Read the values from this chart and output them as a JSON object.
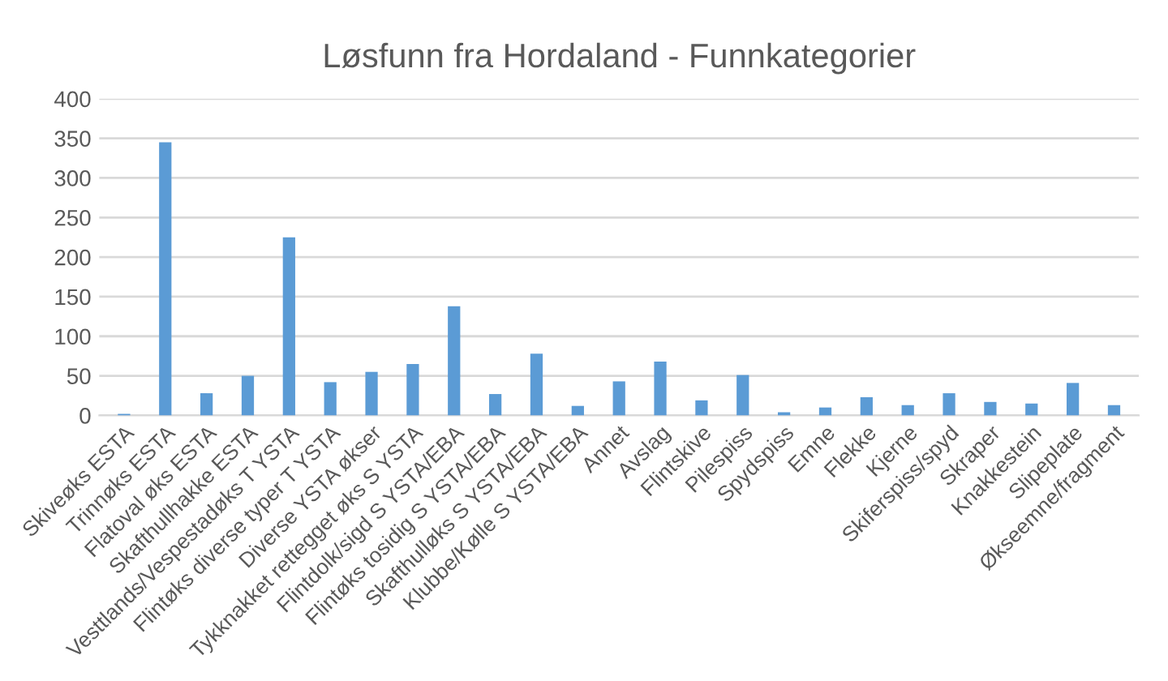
{
  "chart_data": {
    "type": "bar",
    "title": "Løsfunn fra Hordaland - Funnkategorier",
    "categories": [
      "Skiveøks ESTA",
      "Trinnøks ESTA",
      "Flatoval øks ESTA",
      "Skafthullhakke ESTA",
      "Vesttlands/Vespestadøks T YSTA",
      "Flintøks diverse typer T YSTA",
      "Diverse YSTA økser",
      "Tykknakket rettegget øks S YSTA",
      "Flintdolk/sigd S YSTA/EBA",
      "Flintøks tosidig S YSTA/EBA",
      "Skafthulløks S YSTA/EBA",
      "Klubbe/Kølle S YSTA/EBA",
      "Annet",
      "Avslag",
      "Flintskive",
      "Pilespiss",
      "Spydspiss",
      "Emne",
      "Flekke",
      "Kjerne",
      "Skiferspiss/spyd",
      "Skraper",
      "Knakkestein",
      "Slipeplate",
      "Økseemne/fragment"
    ],
    "values": [
      2,
      345,
      28,
      50,
      225,
      42,
      55,
      65,
      138,
      27,
      78,
      12,
      43,
      68,
      19,
      51,
      4,
      10,
      23,
      13,
      28,
      17,
      15,
      41,
      13
    ],
    "color": "#5b9bd5",
    "ylim": [
      0,
      400
    ],
    "yticks": [
      0,
      50,
      100,
      150,
      200,
      250,
      300,
      350,
      400
    ],
    "grid": "y"
  }
}
